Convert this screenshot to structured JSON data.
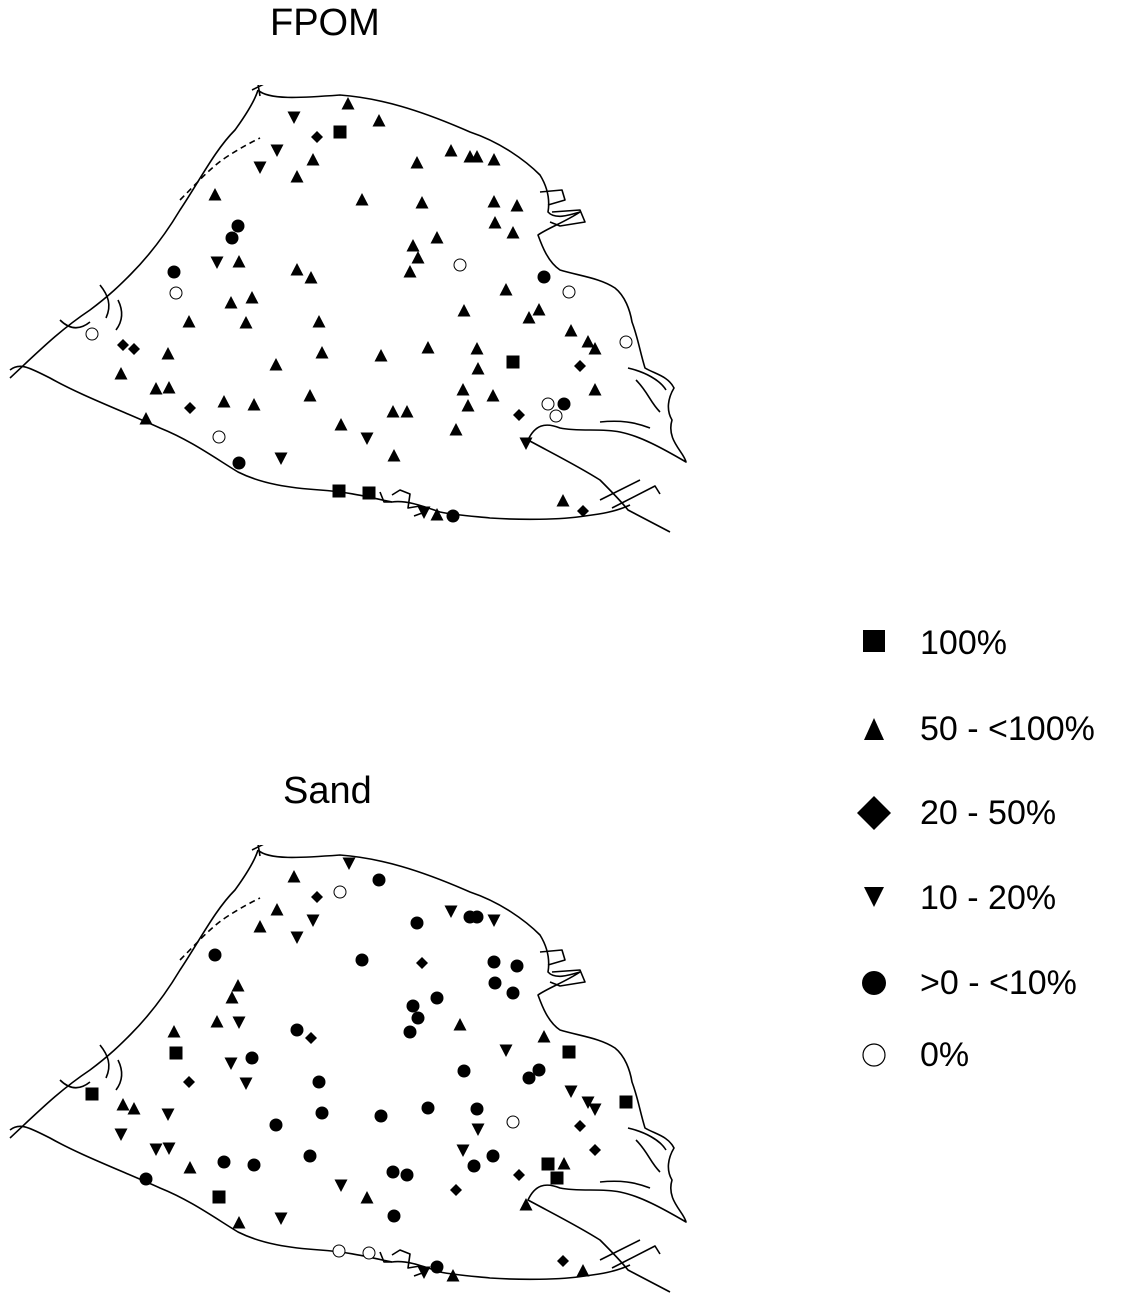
{
  "maps": [
    {
      "id": "fpom",
      "title": "FPOM",
      "points": [
        [
          "tri",
          348,
          104
        ],
        [
          "tri",
          379,
          121
        ],
        [
          "sq",
          340,
          132
        ],
        [
          "dia",
          317,
          137
        ],
        [
          "tdn",
          294,
          117
        ],
        [
          "tdn",
          277,
          150
        ],
        [
          "tdn",
          260,
          167
        ],
        [
          "tri",
          313,
          160
        ],
        [
          "tri",
          297,
          177
        ],
        [
          "tri",
          417,
          163
        ],
        [
          "tri",
          451,
          151
        ],
        [
          "tri",
          470,
          157
        ],
        [
          "tri",
          477,
          157
        ],
        [
          "tri",
          494,
          160
        ],
        [
          "tri",
          215,
          195
        ],
        [
          "tri",
          362,
          200
        ],
        [
          "tri",
          422,
          203
        ],
        [
          "tri",
          494,
          202
        ],
        [
          "tri",
          517,
          206
        ],
        [
          "tri",
          495,
          223
        ],
        [
          "tri",
          513,
          233
        ],
        [
          "cir",
          238,
          226
        ],
        [
          "cir",
          232,
          238
        ],
        [
          "tri",
          437,
          238
        ],
        [
          "tri",
          413,
          246
        ],
        [
          "tri",
          418,
          258
        ],
        [
          "tri",
          410,
          272
        ],
        [
          "ocir",
          460,
          265
        ],
        [
          "tdn",
          217,
          262
        ],
        [
          "tri",
          239,
          262
        ],
        [
          "cir",
          174,
          272
        ],
        [
          "tri",
          297,
          270
        ],
        [
          "tri",
          311,
          278
        ],
        [
          "cir",
          544,
          277
        ],
        [
          "ocir",
          176,
          293
        ],
        [
          "ocir",
          569,
          292
        ],
        [
          "tri",
          506,
          290
        ],
        [
          "tri",
          231,
          303
        ],
        [
          "tri",
          252,
          298
        ],
        [
          "tri",
          464,
          311
        ],
        [
          "tri",
          539,
          310
        ],
        [
          "tri",
          529,
          318
        ],
        [
          "tri",
          189,
          322
        ],
        [
          "tri",
          246,
          323
        ],
        [
          "tri",
          319,
          322
        ],
        [
          "tri",
          571,
          331
        ],
        [
          "ocir",
          92,
          334
        ],
        [
          "dia",
          123,
          345
        ],
        [
          "dia",
          134,
          349
        ],
        [
          "tri",
          588,
          342
        ],
        [
          "tri",
          595,
          349
        ],
        [
          "ocir",
          626,
          342
        ],
        [
          "tri",
          168,
          354
        ],
        [
          "tri",
          322,
          353
        ],
        [
          "tri",
          381,
          356
        ],
        [
          "tri",
          428,
          348
        ],
        [
          "tri",
          477,
          349
        ],
        [
          "tri",
          276,
          365
        ],
        [
          "sq",
          513,
          362
        ],
        [
          "dia",
          580,
          366
        ],
        [
          "tri",
          121,
          374
        ],
        [
          "tri",
          478,
          369
        ],
        [
          "tri",
          156,
          389
        ],
        [
          "tri",
          169,
          388
        ],
        [
          "tri",
          463,
          390
        ],
        [
          "tri",
          595,
          390
        ],
        [
          "tri",
          224,
          402
        ],
        [
          "tri",
          254,
          405
        ],
        [
          "tri",
          310,
          396
        ],
        [
          "tri",
          493,
          396
        ],
        [
          "tri",
          468,
          406
        ],
        [
          "ocir",
          548,
          404
        ],
        [
          "cir",
          564,
          404
        ],
        [
          "dia",
          190,
          408
        ],
        [
          "dia",
          519,
          415
        ],
        [
          "ocir",
          556,
          416
        ],
        [
          "tri",
          146,
          419
        ],
        [
          "tri",
          393,
          412
        ],
        [
          "tri",
          407,
          412
        ],
        [
          "tri",
          341,
          425
        ],
        [
          "tri",
          456,
          430
        ],
        [
          "tdn",
          367,
          438
        ],
        [
          "ocir",
          219,
          437
        ],
        [
          "tdn",
          526,
          443
        ],
        [
          "tri",
          394,
          456
        ],
        [
          "tdn",
          281,
          458
        ],
        [
          "cir",
          239,
          463
        ],
        [
          "sq",
          339,
          491
        ],
        [
          "sq",
          369,
          493
        ],
        [
          "tri",
          563,
          501
        ],
        [
          "dia",
          583,
          511
        ],
        [
          "tdn",
          424,
          512
        ],
        [
          "tri",
          437,
          515
        ],
        [
          "cir",
          453,
          516
        ]
      ]
    },
    {
      "id": "sand",
      "title": "Sand",
      "points": [
        [
          "tdn",
          349,
          863
        ],
        [
          "cir",
          379,
          880
        ],
        [
          "ocir",
          340,
          892
        ],
        [
          "dia",
          317,
          897
        ],
        [
          "tri",
          294,
          877
        ],
        [
          "tri",
          277,
          910
        ],
        [
          "tri",
          260,
          927
        ],
        [
          "tdn",
          313,
          920
        ],
        [
          "tdn",
          297,
          937
        ],
        [
          "cir",
          417,
          923
        ],
        [
          "tdn",
          451,
          911
        ],
        [
          "cir",
          470,
          917
        ],
        [
          "cir",
          477,
          917
        ],
        [
          "tdn",
          494,
          920
        ],
        [
          "cir",
          215,
          955
        ],
        [
          "cir",
          362,
          960
        ],
        [
          "dia",
          422,
          963
        ],
        [
          "cir",
          494,
          962
        ],
        [
          "cir",
          517,
          966
        ],
        [
          "cir",
          495,
          983
        ],
        [
          "cir",
          513,
          993
        ],
        [
          "tri",
          238,
          986
        ],
        [
          "tri",
          232,
          998
        ],
        [
          "cir",
          437,
          998
        ],
        [
          "cir",
          413,
          1006
        ],
        [
          "cir",
          418,
          1018
        ],
        [
          "cir",
          410,
          1032
        ],
        [
          "tri",
          460,
          1025
        ],
        [
          "tri",
          217,
          1022
        ],
        [
          "tdn",
          239,
          1022
        ],
        [
          "tri",
          174,
          1032
        ],
        [
          "cir",
          297,
          1030
        ],
        [
          "dia",
          311,
          1038
        ],
        [
          "tri",
          544,
          1037
        ],
        [
          "sq",
          176,
          1053
        ],
        [
          "sq",
          569,
          1052
        ],
        [
          "tdn",
          506,
          1050
        ],
        [
          "tdn",
          231,
          1063
        ],
        [
          "cir",
          252,
          1058
        ],
        [
          "cir",
          464,
          1071
        ],
        [
          "cir",
          539,
          1070
        ],
        [
          "cir",
          529,
          1078
        ],
        [
          "dia",
          189,
          1082
        ],
        [
          "tdn",
          246,
          1083
        ],
        [
          "cir",
          319,
          1082
        ],
        [
          "tdn",
          571,
          1091
        ],
        [
          "sq",
          92,
          1094
        ],
        [
          "tri",
          123,
          1105
        ],
        [
          "tri",
          134,
          1109
        ],
        [
          "tdn",
          588,
          1102
        ],
        [
          "tdn",
          595,
          1109
        ],
        [
          "sq",
          626,
          1102
        ],
        [
          "tdn",
          168,
          1114
        ],
        [
          "cir",
          322,
          1113
        ],
        [
          "cir",
          381,
          1116
        ],
        [
          "cir",
          428,
          1108
        ],
        [
          "cir",
          477,
          1109
        ],
        [
          "cir",
          276,
          1125
        ],
        [
          "ocir",
          513,
          1122
        ],
        [
          "dia",
          580,
          1126
        ],
        [
          "tdn",
          121,
          1134
        ],
        [
          "tdn",
          478,
          1129
        ],
        [
          "tdn",
          156,
          1149
        ],
        [
          "tdn",
          169,
          1148
        ],
        [
          "tdn",
          463,
          1150
        ],
        [
          "dia",
          595,
          1150
        ],
        [
          "cir",
          224,
          1162
        ],
        [
          "cir",
          254,
          1165
        ],
        [
          "cir",
          310,
          1156
        ],
        [
          "cir",
          493,
          1156
        ],
        [
          "cir",
          474,
          1166
        ],
        [
          "sq",
          548,
          1164
        ],
        [
          "sq",
          557,
          1178
        ],
        [
          "tri",
          564,
          1164
        ],
        [
          "dia",
          519,
          1175
        ],
        [
          "tri",
          190,
          1168
        ],
        [
          "cir",
          146,
          1179
        ],
        [
          "cir",
          393,
          1172
        ],
        [
          "cir",
          407,
          1175
        ],
        [
          "tdn",
          341,
          1185
        ],
        [
          "dia",
          456,
          1190
        ],
        [
          "tri",
          367,
          1198
        ],
        [
          "sq",
          219,
          1197
        ],
        [
          "tri",
          526,
          1205
        ],
        [
          "cir",
          394,
          1216
        ],
        [
          "tdn",
          281,
          1218
        ],
        [
          "tri",
          239,
          1223
        ],
        [
          "ocir",
          339,
          1251
        ],
        [
          "ocir",
          369,
          1253
        ],
        [
          "dia",
          563,
          1261
        ],
        [
          "tri",
          583,
          1271
        ],
        [
          "tdn",
          424,
          1272
        ],
        [
          "cir",
          437,
          1267
        ],
        [
          "tri",
          453,
          1276
        ]
      ]
    }
  ],
  "legend": [
    {
      "symbol": "sq",
      "label": "100%"
    },
    {
      "symbol": "tri",
      "label": "50 - <100%"
    },
    {
      "symbol": "dia",
      "label": "20 - 50%"
    },
    {
      "symbol": "tdn",
      "label": "10 - 20%"
    },
    {
      "symbol": "cir",
      "label": ">0 - <10%"
    },
    {
      "symbol": "ocir",
      "label": "0%"
    }
  ]
}
